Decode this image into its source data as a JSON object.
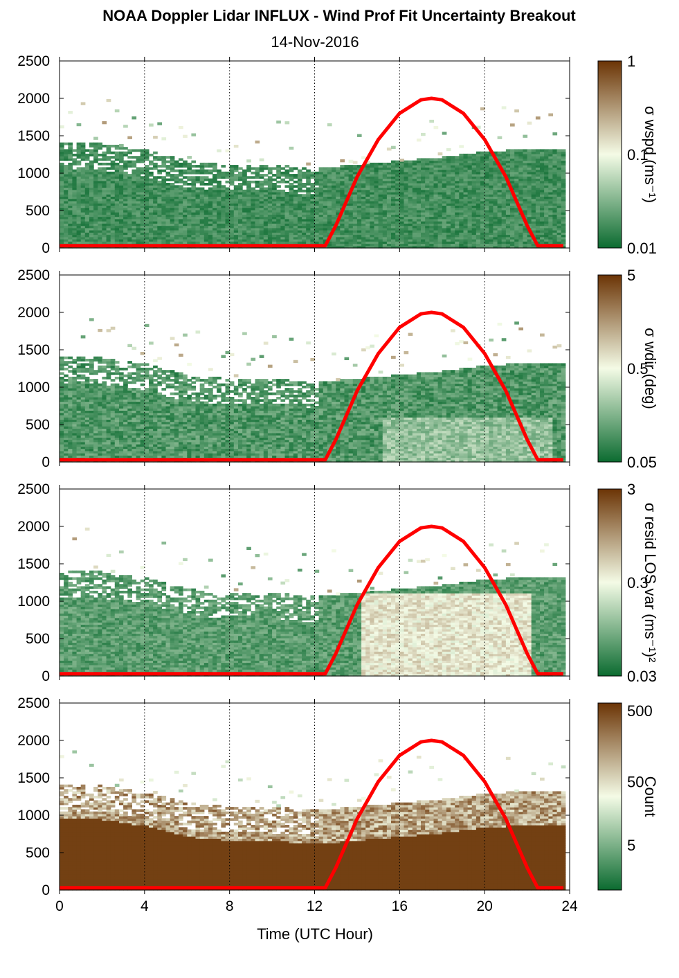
{
  "title": "NOAA Doppler Lidar INFLUX - Wind Prof Fit Uncertainty Breakout",
  "subtitle": "14-Nov-2016",
  "xlabel": "Time (UTC Hour)",
  "x_ticks": [
    "0",
    "4",
    "8",
    "12",
    "16",
    "20",
    "24"
  ],
  "y_ticks": [
    "0",
    "500",
    "1000",
    "1500",
    "2000",
    "2500"
  ],
  "colors": {
    "low": "#0b6b30",
    "mid": "#f4fbe6",
    "high": "#6b3405",
    "sun_curve": "#ff0000"
  },
  "chart_data": [
    {
      "type": "heatmap",
      "name": "wspd-uncertainty",
      "colorbar_label": "σ wspd (ms⁻¹)",
      "colorbar_ticks": [
        "0.01",
        "0.1",
        "1"
      ],
      "xlim": [
        0,
        24
      ],
      "ylim": [
        0,
        2500
      ],
      "cloud_top_m": [
        [
          0,
          1400
        ],
        [
          2,
          1380
        ],
        [
          4,
          1300
        ],
        [
          6,
          1150
        ],
        [
          8,
          1100
        ],
        [
          10,
          1100
        ],
        [
          12,
          1050
        ],
        [
          14,
          1100
        ],
        [
          16,
          1150
        ],
        [
          18,
          1200
        ],
        [
          20,
          1280
        ],
        [
          22,
          1300
        ],
        [
          23.7,
          1300
        ]
      ],
      "overlay_line": {
        "x": [
          0,
          12.5,
          13,
          14,
          15,
          16,
          17,
          17.5,
          18,
          19,
          20,
          21,
          22,
          22.5,
          23.7
        ],
        "y": [
          30,
          30,
          300,
          950,
          1450,
          1800,
          1980,
          2000,
          1980,
          1800,
          1450,
          950,
          300,
          30,
          30
        ]
      }
    },
    {
      "type": "heatmap",
      "name": "wdir-uncertainty",
      "colorbar_label": "σ wdir (deg)",
      "colorbar_ticks": [
        "0.05",
        "0.5",
        "5"
      ],
      "xlim": [
        0,
        24
      ],
      "ylim": [
        0,
        2500
      ],
      "cloud_top_m": [
        [
          0,
          1400
        ],
        [
          2,
          1380
        ],
        [
          4,
          1300
        ],
        [
          6,
          1150
        ],
        [
          8,
          1100
        ],
        [
          10,
          1100
        ],
        [
          12,
          1050
        ],
        [
          14,
          1100
        ],
        [
          16,
          1150
        ],
        [
          18,
          1200
        ],
        [
          20,
          1280
        ],
        [
          22,
          1300
        ],
        [
          23.7,
          1300
        ]
      ],
      "overlay_line": {
        "x": [
          0,
          12.5,
          13,
          14,
          15,
          16,
          17,
          17.5,
          18,
          19,
          20,
          21,
          22,
          22.5,
          23.7
        ],
        "y": [
          30,
          30,
          300,
          950,
          1450,
          1800,
          1980,
          2000,
          1980,
          1800,
          1450,
          950,
          300,
          30,
          30
        ]
      }
    },
    {
      "type": "heatmap",
      "name": "resid-los-var",
      "colorbar_label": "σ resid LOS var (ms⁻¹)²",
      "colorbar_ticks": [
        "0.03",
        "0.3",
        "3"
      ],
      "xlim": [
        0,
        24
      ],
      "ylim": [
        0,
        2500
      ],
      "cloud_top_m": [
        [
          0,
          1400
        ],
        [
          2,
          1380
        ],
        [
          4,
          1300
        ],
        [
          6,
          1150
        ],
        [
          8,
          1100
        ],
        [
          10,
          1100
        ],
        [
          12,
          1050
        ],
        [
          14,
          1100
        ],
        [
          16,
          1150
        ],
        [
          18,
          1200
        ],
        [
          20,
          1280
        ],
        [
          22,
          1300
        ],
        [
          23.7,
          1300
        ]
      ],
      "overlay_line": {
        "x": [
          0,
          12.5,
          13,
          14,
          15,
          16,
          17,
          17.5,
          18,
          19,
          20,
          21,
          22,
          22.5,
          23.7
        ],
        "y": [
          30,
          30,
          300,
          950,
          1450,
          1800,
          1980,
          2000,
          1980,
          1800,
          1450,
          950,
          300,
          30,
          30
        ]
      }
    },
    {
      "type": "heatmap",
      "name": "count",
      "colorbar_label": "Count",
      "colorbar_ticks": [
        "5",
        "50",
        "500"
      ],
      "xlim": [
        0,
        24
      ],
      "ylim": [
        0,
        2500
      ],
      "cloud_top_m": [
        [
          0,
          1400
        ],
        [
          2,
          1380
        ],
        [
          4,
          1300
        ],
        [
          6,
          1150
        ],
        [
          8,
          1100
        ],
        [
          10,
          1100
        ],
        [
          12,
          1050
        ],
        [
          14,
          1100
        ],
        [
          16,
          1150
        ],
        [
          18,
          1200
        ],
        [
          20,
          1280
        ],
        [
          22,
          1300
        ],
        [
          23.7,
          1300
        ]
      ],
      "overlay_line": {
        "x": [
          0,
          12.5,
          13,
          14,
          15,
          16,
          17,
          17.5,
          18,
          19,
          20,
          21,
          22,
          22.5,
          23.7
        ],
        "y": [
          30,
          30,
          300,
          950,
          1450,
          1800,
          1980,
          2000,
          1980,
          1800,
          1450,
          950,
          300,
          30,
          30
        ]
      }
    }
  ]
}
